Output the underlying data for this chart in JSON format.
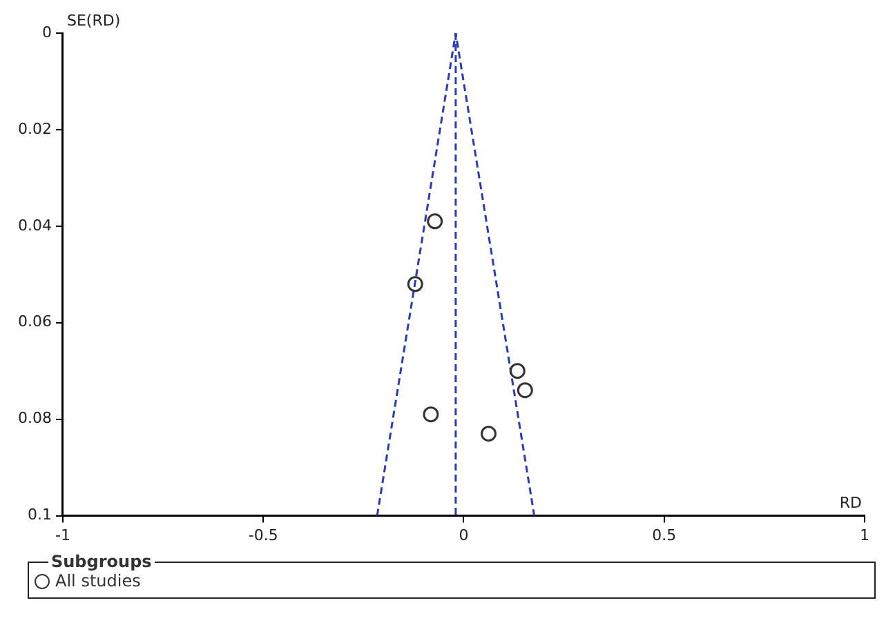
{
  "chart_data": {
    "type": "scatter",
    "xlabel": "RD",
    "ylabel": "SE(RD)",
    "legend_title": "Subgroups",
    "legend": "bottom",
    "grid": false,
    "marker": "circle",
    "xlim": [
      -1,
      1
    ],
    "xticks": [
      -1,
      -0.5,
      0,
      0.5,
      1
    ],
    "ylim": [
      0.1,
      0
    ],
    "yticks": [
      0,
      0.02,
      0.04,
      0.06,
      0.08,
      0.1
    ],
    "series": [
      {
        "name": "All studies",
        "color": "#333333",
        "x": [
          -0.072,
          -0.121,
          0.134,
          0.153,
          -0.082,
          0.062
        ],
        "values": [
          0.039,
          0.052,
          0.07,
          0.074,
          0.079,
          0.083
        ]
      },
      {
        "type": "line",
        "color": "#2a3bb8",
        "line_style": "dashed",
        "marker": "none",
        "x": [
          -0.216,
          -0.02,
          0.176
        ],
        "values": [
          0.1,
          0,
          0.1
        ]
      }
    ],
    "ref_lines": [
      {
        "axis": "x",
        "value": -0.02,
        "color": "#2a3bb8",
        "line_style": "dashed"
      }
    ]
  }
}
